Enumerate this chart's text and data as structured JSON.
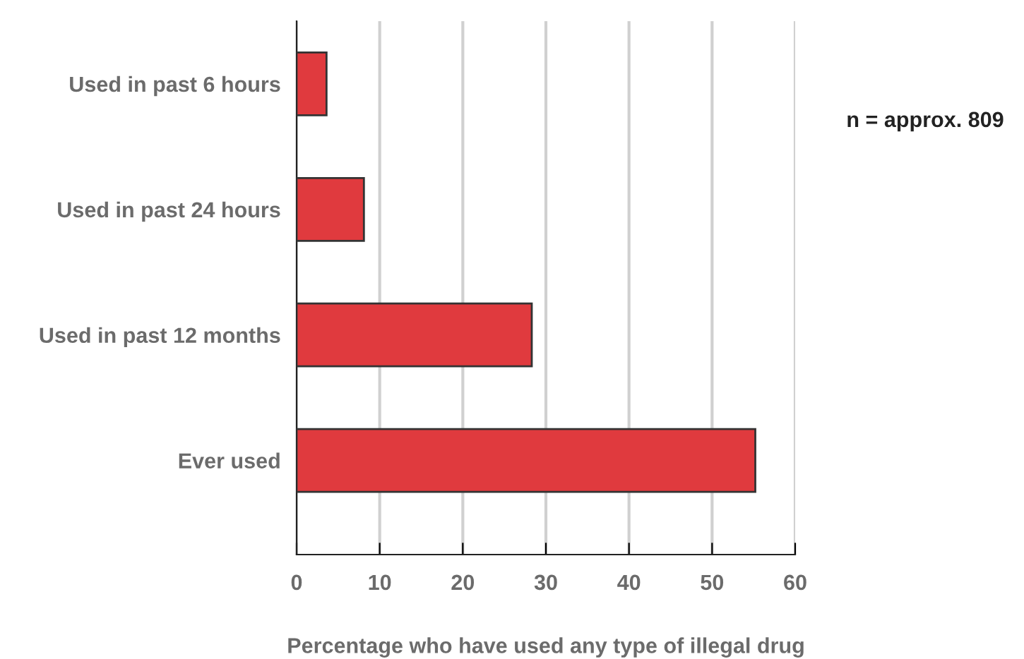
{
  "chart_data": {
    "type": "bar",
    "orientation": "horizontal",
    "categories": [
      "Used in past 6 hours",
      "Used in past 24 hours",
      "Used in past 12 months",
      "Ever used"
    ],
    "values": [
      3.6,
      8.1,
      28.3,
      55.2
    ],
    "color": "#e03a3e",
    "xlim": [
      0,
      60
    ],
    "xticks": [
      0,
      10,
      20,
      30,
      40,
      50,
      60
    ],
    "grid": "x",
    "xlabel": "Percentage who have used any type of illegal drug",
    "annotations": [
      "n = approx. 809"
    ]
  }
}
